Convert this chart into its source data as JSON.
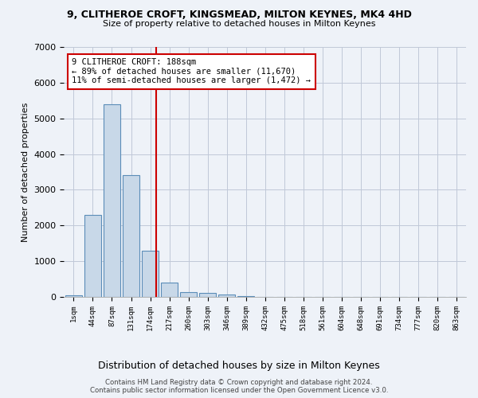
{
  "title": "9, CLITHEROE CROFT, KINGSMEAD, MILTON KEYNES, MK4 4HD",
  "subtitle": "Size of property relative to detached houses in Milton Keynes",
  "xlabel": "Distribution of detached houses by size in Milton Keynes",
  "ylabel": "Number of detached properties",
  "footer_line1": "Contains HM Land Registry data © Crown copyright and database right 2024.",
  "footer_line2": "Contains public sector information licensed under the Open Government Licence v3.0.",
  "bin_labels": [
    "1sqm",
    "44sqm",
    "87sqm",
    "131sqm",
    "174sqm",
    "217sqm",
    "260sqm",
    "303sqm",
    "346sqm",
    "389sqm",
    "432sqm",
    "475sqm",
    "518sqm",
    "561sqm",
    "604sqm",
    "648sqm",
    "691sqm",
    "734sqm",
    "777sqm",
    "820sqm",
    "863sqm"
  ],
  "bar_heights": [
    50,
    2300,
    5400,
    3400,
    1300,
    400,
    130,
    120,
    60,
    15,
    10,
    5,
    0,
    0,
    0,
    0,
    0,
    0,
    0,
    0,
    0
  ],
  "bar_color": "#c8d8e8",
  "bar_edge_color": "#5b8db8",
  "red_line_x": 4.33,
  "annotation_text_line1": "9 CLITHEROE CROFT: 188sqm",
  "annotation_text_line2": "← 89% of detached houses are smaller (11,670)",
  "annotation_text_line3": "11% of semi-detached houses are larger (1,472) →",
  "annotation_box_color": "#ffffff",
  "annotation_box_edge": "#cc0000",
  "vline_color": "#cc0000",
  "grid_color": "#c0c8d8",
  "bg_color": "#eef2f8",
  "ylim": [
    0,
    7000
  ],
  "yticks": [
    0,
    1000,
    2000,
    3000,
    4000,
    5000,
    6000,
    7000
  ]
}
